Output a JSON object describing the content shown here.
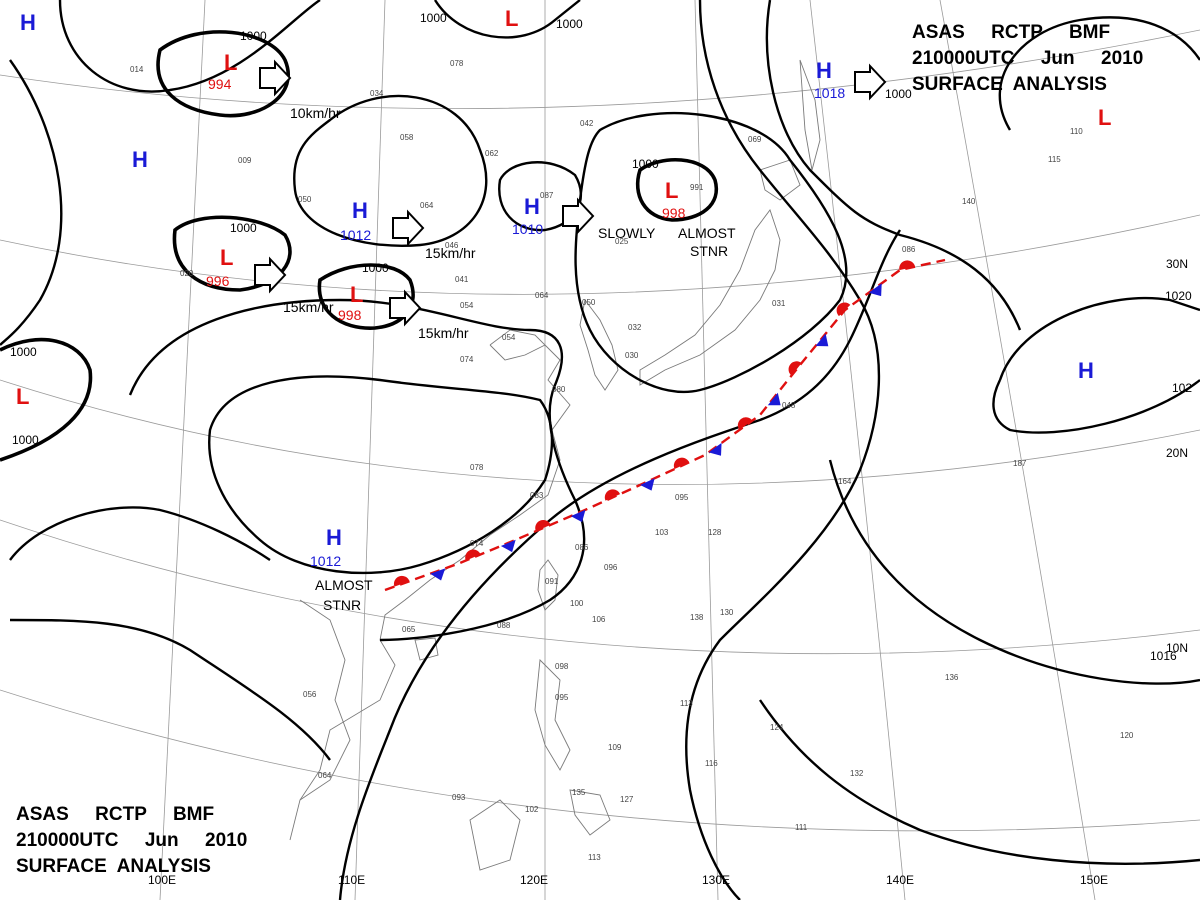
{
  "headers": [
    {
      "line1": "ASAS     RCTP     BMF",
      "line2": "210000UTC     Jun     2010",
      "line3": "SURFACE  ANALYSIS"
    },
    {
      "line1": "ASAS     RCTP     BMF",
      "line2": "210000UTC     Jun     2010",
      "line3": "SURFACE  ANALYSIS"
    }
  ],
  "colors": {
    "high": "#1a1ad6",
    "low": "#e01010",
    "warm_front": "#e01010",
    "cold_front": "#1a1ad6",
    "isobar": "#000000",
    "grid": "#9a9a9a",
    "coast": "#7a7a7a"
  },
  "pressure_centers": [
    {
      "type": "H",
      "value": ""
    },
    {
      "type": "L",
      "value": "994"
    },
    {
      "type": "H",
      "value": ""
    },
    {
      "type": "L",
      "value": "996"
    },
    {
      "type": "H",
      "value": "1012"
    },
    {
      "type": "L",
      "value": "998"
    },
    {
      "type": "H",
      "value": "1010"
    },
    {
      "type": "L",
      "value": "998"
    },
    {
      "type": "H",
      "value": "1018"
    },
    {
      "type": "L",
      "value": ""
    },
    {
      "type": "L",
      "value": ""
    },
    {
      "type": "H",
      "value": ""
    },
    {
      "type": "H",
      "value": "1012"
    },
    {
      "type": "L",
      "value": ""
    }
  ],
  "isobar_labels": [
    "1000",
    "1000",
    "1000",
    "1000",
    "1000",
    "1000",
    "1000",
    "1000",
    "1000",
    "1020",
    "102",
    "1016"
  ],
  "motion_labels": [
    "10km/hr",
    "15km/hr",
    "15km/hr",
    "15km/hr",
    "SLOWLY",
    "ALMOST",
    "STNR",
    "ALMOST",
    "STNR"
  ],
  "lat_labels": [
    "30N",
    "20N",
    "10N"
  ],
  "lon_labels": [
    "100E",
    "110E",
    "120E",
    "130E",
    "140E",
    "150E"
  ],
  "station_values": [
    "014",
    "034",
    "078",
    "058",
    "062",
    "042",
    "087",
    "991",
    "009",
    "050",
    "064",
    "025",
    "086",
    "020",
    "041",
    "054",
    "064",
    "050",
    "032",
    "054",
    "074",
    "046",
    "030",
    "080",
    "078",
    "083",
    "074",
    "086",
    "096",
    "103",
    "128",
    "095",
    "106",
    "100",
    "088",
    "091",
    "065",
    "056",
    "098",
    "095",
    "113",
    "109",
    "116",
    "124",
    "132",
    "136",
    "120",
    "111",
    "093",
    "102",
    "135",
    "127",
    "113",
    "064",
    "130",
    "138",
    "187",
    "164",
    "140",
    "110",
    "115",
    "069",
    "031",
    "048"
  ]
}
